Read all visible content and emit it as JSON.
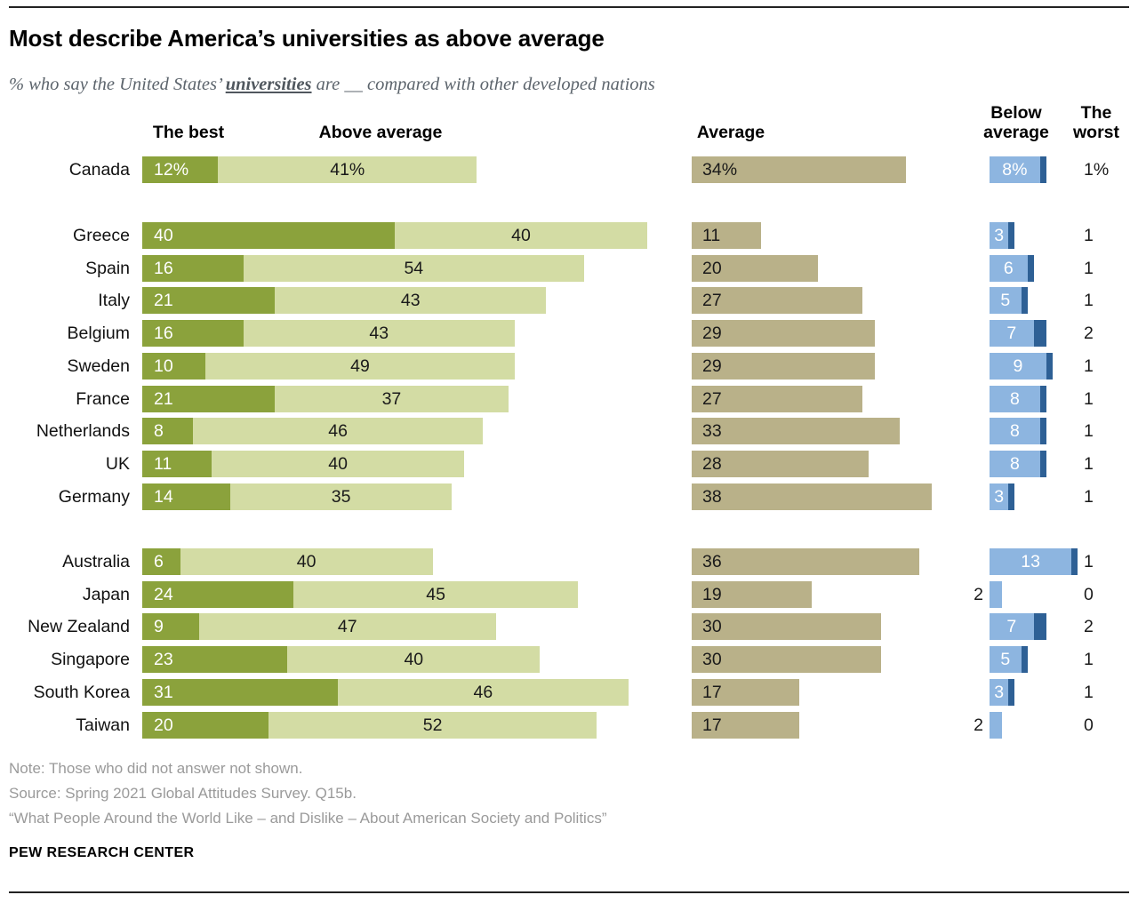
{
  "header": {
    "title": "Most describe America’s universities as above average",
    "subtitle_prefix": "% who say the United States’ ",
    "subtitle_emph": "universities",
    "subtitle_suffix": " are __ compared with other developed nations"
  },
  "columns": {
    "best": "The best",
    "above": "Above average",
    "average": "Average",
    "below_line1": "Below",
    "below_line2": "average",
    "worst_line1": "The",
    "worst_line2": "worst"
  },
  "colors": {
    "best": "#8ba23c",
    "above_average": "#d3dca4",
    "average": "#b9b189",
    "below_average": "#8db5e0",
    "the_worst": "#2e6095"
  },
  "chart_data": {
    "type": "bar",
    "orientation": "horizontal-stacked-panels",
    "unit": "percent",
    "series_names": [
      "The best",
      "Above average",
      "Average",
      "Below average",
      "The worst"
    ],
    "groups": [
      {
        "label_suffix": "%",
        "rows": [
          {
            "country": "Canada",
            "best": 12,
            "above": 41,
            "average": 34,
            "below": 8,
            "worst": 1
          }
        ]
      },
      {
        "label_suffix": "",
        "rows": [
          {
            "country": "Greece",
            "best": 40,
            "above": 40,
            "average": 11,
            "below": 3,
            "worst": 1
          },
          {
            "country": "Spain",
            "best": 16,
            "above": 54,
            "average": 20,
            "below": 6,
            "worst": 1
          },
          {
            "country": "Italy",
            "best": 21,
            "above": 43,
            "average": 27,
            "below": 5,
            "worst": 1
          },
          {
            "country": "Belgium",
            "best": 16,
            "above": 43,
            "average": 29,
            "below": 7,
            "worst": 2
          },
          {
            "country": "Sweden",
            "best": 10,
            "above": 49,
            "average": 29,
            "below": 9,
            "worst": 1
          },
          {
            "country": "France",
            "best": 21,
            "above": 37,
            "average": 27,
            "below": 8,
            "worst": 1
          },
          {
            "country": "Netherlands",
            "best": 8,
            "above": 46,
            "average": 33,
            "below": 8,
            "worst": 1
          },
          {
            "country": "UK",
            "best": 11,
            "above": 40,
            "average": 28,
            "below": 8,
            "worst": 1
          },
          {
            "country": "Germany",
            "best": 14,
            "above": 35,
            "average": 38,
            "below": 3,
            "worst": 1
          }
        ]
      },
      {
        "label_suffix": "",
        "rows": [
          {
            "country": "Australia",
            "best": 6,
            "above": 40,
            "average": 36,
            "below": 13,
            "worst": 1
          },
          {
            "country": "Japan",
            "best": 24,
            "above": 45,
            "average": 19,
            "below": 2,
            "worst": 0
          },
          {
            "country": "New Zealand",
            "best": 9,
            "above": 47,
            "average": 30,
            "below": 7,
            "worst": 2
          },
          {
            "country": "Singapore",
            "best": 23,
            "above": 40,
            "average": 30,
            "below": 5,
            "worst": 1
          },
          {
            "country": "South Korea",
            "best": 31,
            "above": 46,
            "average": 17,
            "below": 3,
            "worst": 1
          },
          {
            "country": "Taiwan",
            "best": 20,
            "above": 52,
            "average": 17,
            "below": 2,
            "worst": 0
          }
        ]
      }
    ]
  },
  "footer": {
    "note": "Note: Those who did not answer not shown.",
    "source": "Source: Spring 2021 Global Attitudes Survey. Q15b.",
    "quote": "“What People Around the World Like – and Dislike – About American Society and Politics”",
    "brand": "PEW RESEARCH CENTER"
  }
}
